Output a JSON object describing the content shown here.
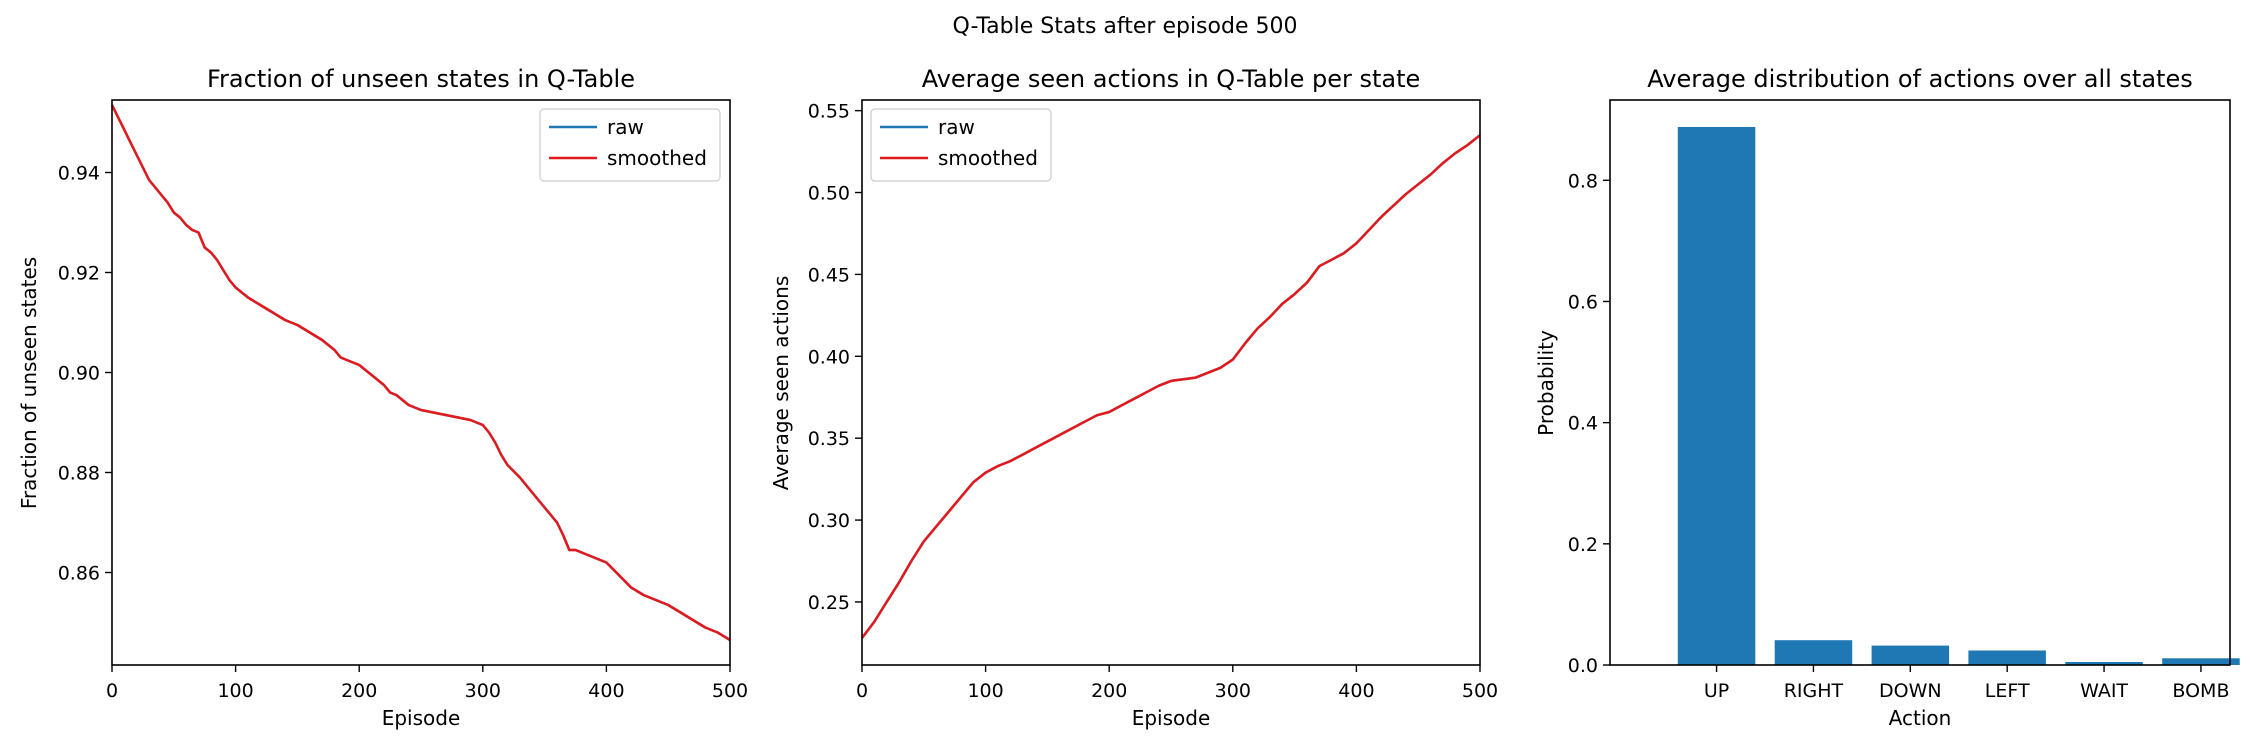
{
  "figure": {
    "suptitle": "Q-Table Stats after episode 500"
  },
  "chart_data": [
    {
      "type": "line",
      "title": "Fraction of unseen states in Q-Table",
      "xlabel": "Episode",
      "ylabel": "Fraction of unseen states",
      "xlim": [
        0,
        500
      ],
      "ylim": [
        0.8415,
        0.9545
      ],
      "xticks": [
        0,
        100,
        200,
        300,
        400,
        500
      ],
      "yticks": [
        0.86,
        0.88,
        0.9,
        0.92,
        0.94
      ],
      "ytick_labels": [
        "0.86",
        "0.88",
        "0.90",
        "0.92",
        "0.94"
      ],
      "grid": false,
      "legend": "top-right",
      "series": [
        {
          "name": "raw",
          "color": "#1f77b4",
          "x": [
            0,
            5,
            10,
            15,
            20,
            25,
            30,
            35,
            40,
            45,
            50,
            55,
            60,
            65,
            70,
            75,
            80,
            85,
            90,
            95,
            100,
            110,
            120,
            130,
            140,
            150,
            160,
            170,
            180,
            185,
            190,
            200,
            210,
            220,
            225,
            230,
            240,
            245,
            250,
            260,
            270,
            280,
            290,
            300,
            305,
            310,
            315,
            320,
            330,
            340,
            345,
            350,
            360,
            365,
            370,
            375,
            380,
            390,
            400,
            410,
            420,
            430,
            440,
            450,
            460,
            470,
            480,
            490,
            500
          ],
          "y": [
            0.9535,
            0.951,
            0.9485,
            0.946,
            0.9435,
            0.941,
            0.9385,
            0.937,
            0.9355,
            0.934,
            0.932,
            0.931,
            0.9295,
            0.9285,
            0.928,
            0.925,
            0.924,
            0.9225,
            0.9205,
            0.9185,
            0.917,
            0.915,
            0.9135,
            0.912,
            0.9105,
            0.9095,
            0.908,
            0.9065,
            0.9045,
            0.903,
            0.9025,
            0.9015,
            0.8995,
            0.8975,
            0.896,
            0.8955,
            0.8935,
            0.893,
            0.8925,
            0.892,
            0.8915,
            0.891,
            0.8905,
            0.8895,
            0.888,
            0.886,
            0.8835,
            0.8815,
            0.879,
            0.876,
            0.8745,
            0.873,
            0.87,
            0.8675,
            0.8645,
            0.8645,
            0.864,
            0.863,
            0.862,
            0.8595,
            0.857,
            0.8555,
            0.8545,
            0.8535,
            0.852,
            0.8505,
            0.849,
            0.848,
            0.8465
          ]
        },
        {
          "name": "smoothed",
          "color": "#e31a1c",
          "x": [
            0,
            5,
            10,
            15,
            20,
            25,
            30,
            35,
            40,
            45,
            50,
            55,
            60,
            65,
            70,
            75,
            80,
            85,
            90,
            95,
            100,
            110,
            120,
            130,
            140,
            150,
            160,
            170,
            180,
            185,
            190,
            200,
            210,
            220,
            225,
            230,
            240,
            245,
            250,
            260,
            270,
            280,
            290,
            300,
            305,
            310,
            315,
            320,
            330,
            340,
            345,
            350,
            360,
            365,
            370,
            375,
            380,
            390,
            400,
            410,
            420,
            430,
            440,
            450,
            460,
            470,
            480,
            490,
            500
          ],
          "y": [
            0.9535,
            0.951,
            0.9485,
            0.946,
            0.9435,
            0.941,
            0.9385,
            0.937,
            0.9355,
            0.934,
            0.932,
            0.931,
            0.9295,
            0.9285,
            0.928,
            0.925,
            0.924,
            0.9225,
            0.9205,
            0.9185,
            0.917,
            0.915,
            0.9135,
            0.912,
            0.9105,
            0.9095,
            0.908,
            0.9065,
            0.9045,
            0.903,
            0.9025,
            0.9015,
            0.8995,
            0.8975,
            0.896,
            0.8955,
            0.8935,
            0.893,
            0.8925,
            0.892,
            0.8915,
            0.891,
            0.8905,
            0.8895,
            0.888,
            0.886,
            0.8835,
            0.8815,
            0.879,
            0.876,
            0.8745,
            0.873,
            0.87,
            0.8675,
            0.8645,
            0.8645,
            0.864,
            0.863,
            0.862,
            0.8595,
            0.857,
            0.8555,
            0.8545,
            0.8535,
            0.852,
            0.8505,
            0.849,
            0.848,
            0.8465
          ]
        }
      ]
    },
    {
      "type": "line",
      "title": "Average seen actions in Q-Table per state",
      "xlabel": "Episode",
      "ylabel": "Average seen actions",
      "xlim": [
        0,
        500
      ],
      "ylim": [
        0.2115,
        0.5565
      ],
      "xticks": [
        0,
        100,
        200,
        300,
        400,
        500
      ],
      "yticks": [
        0.25,
        0.3,
        0.35,
        0.4,
        0.45,
        0.5,
        0.55
      ],
      "ytick_labels": [
        "0.25",
        "0.30",
        "0.35",
        "0.40",
        "0.45",
        "0.50",
        "0.55"
      ],
      "grid": false,
      "legend": "top-left",
      "series": [
        {
          "name": "raw",
          "color": "#1f77b4",
          "x": [
            0,
            10,
            20,
            30,
            40,
            50,
            60,
            70,
            80,
            90,
            100,
            110,
            120,
            130,
            140,
            150,
            160,
            170,
            180,
            190,
            200,
            210,
            220,
            230,
            240,
            250,
            260,
            270,
            280,
            290,
            300,
            310,
            320,
            330,
            340,
            350,
            360,
            370,
            380,
            390,
            400,
            410,
            420,
            430,
            440,
            450,
            460,
            470,
            480,
            490,
            500
          ],
          "y": [
            0.228,
            0.238,
            0.25,
            0.262,
            0.275,
            0.287,
            0.296,
            0.305,
            0.314,
            0.323,
            0.329,
            0.333,
            0.336,
            0.34,
            0.344,
            0.348,
            0.352,
            0.356,
            0.36,
            0.364,
            0.366,
            0.37,
            0.374,
            0.378,
            0.382,
            0.385,
            0.386,
            0.387,
            0.39,
            0.393,
            0.398,
            0.408,
            0.417,
            0.424,
            0.432,
            0.438,
            0.445,
            0.455,
            0.459,
            0.463,
            0.469,
            0.477,
            0.485,
            0.492,
            0.499,
            0.505,
            0.511,
            0.518,
            0.524,
            0.529,
            0.535
          ]
        },
        {
          "name": "smoothed",
          "color": "#e31a1c",
          "x": [
            0,
            10,
            20,
            30,
            40,
            50,
            60,
            70,
            80,
            90,
            100,
            110,
            120,
            130,
            140,
            150,
            160,
            170,
            180,
            190,
            200,
            210,
            220,
            230,
            240,
            250,
            260,
            270,
            280,
            290,
            300,
            310,
            320,
            330,
            340,
            350,
            360,
            370,
            380,
            390,
            400,
            410,
            420,
            430,
            440,
            450,
            460,
            470,
            480,
            490,
            500
          ],
          "y": [
            0.228,
            0.238,
            0.25,
            0.262,
            0.275,
            0.287,
            0.296,
            0.305,
            0.314,
            0.323,
            0.329,
            0.333,
            0.336,
            0.34,
            0.344,
            0.348,
            0.352,
            0.356,
            0.36,
            0.364,
            0.366,
            0.37,
            0.374,
            0.378,
            0.382,
            0.385,
            0.386,
            0.387,
            0.39,
            0.393,
            0.398,
            0.408,
            0.417,
            0.424,
            0.432,
            0.438,
            0.445,
            0.455,
            0.459,
            0.463,
            0.469,
            0.477,
            0.485,
            0.492,
            0.499,
            0.505,
            0.511,
            0.518,
            0.524,
            0.529,
            0.535
          ]
        }
      ]
    },
    {
      "type": "bar",
      "title": "Average distribution of actions over all states",
      "xlabel": "Action",
      "ylabel": "Probability",
      "categories": [
        "UP",
        "RIGHT",
        "DOWN",
        "LEFT",
        "WAIT",
        "BOMB"
      ],
      "values": [
        0.888,
        0.041,
        0.032,
        0.024,
        0.005,
        0.011
      ],
      "ylim": [
        0,
        0.9325
      ],
      "yticks": [
        0.0,
        0.2,
        0.4,
        0.6,
        0.8
      ],
      "ytick_labels": [
        "0.0",
        "0.2",
        "0.4",
        "0.6",
        "0.8"
      ],
      "grid": false,
      "color": "#1f77b4"
    }
  ]
}
